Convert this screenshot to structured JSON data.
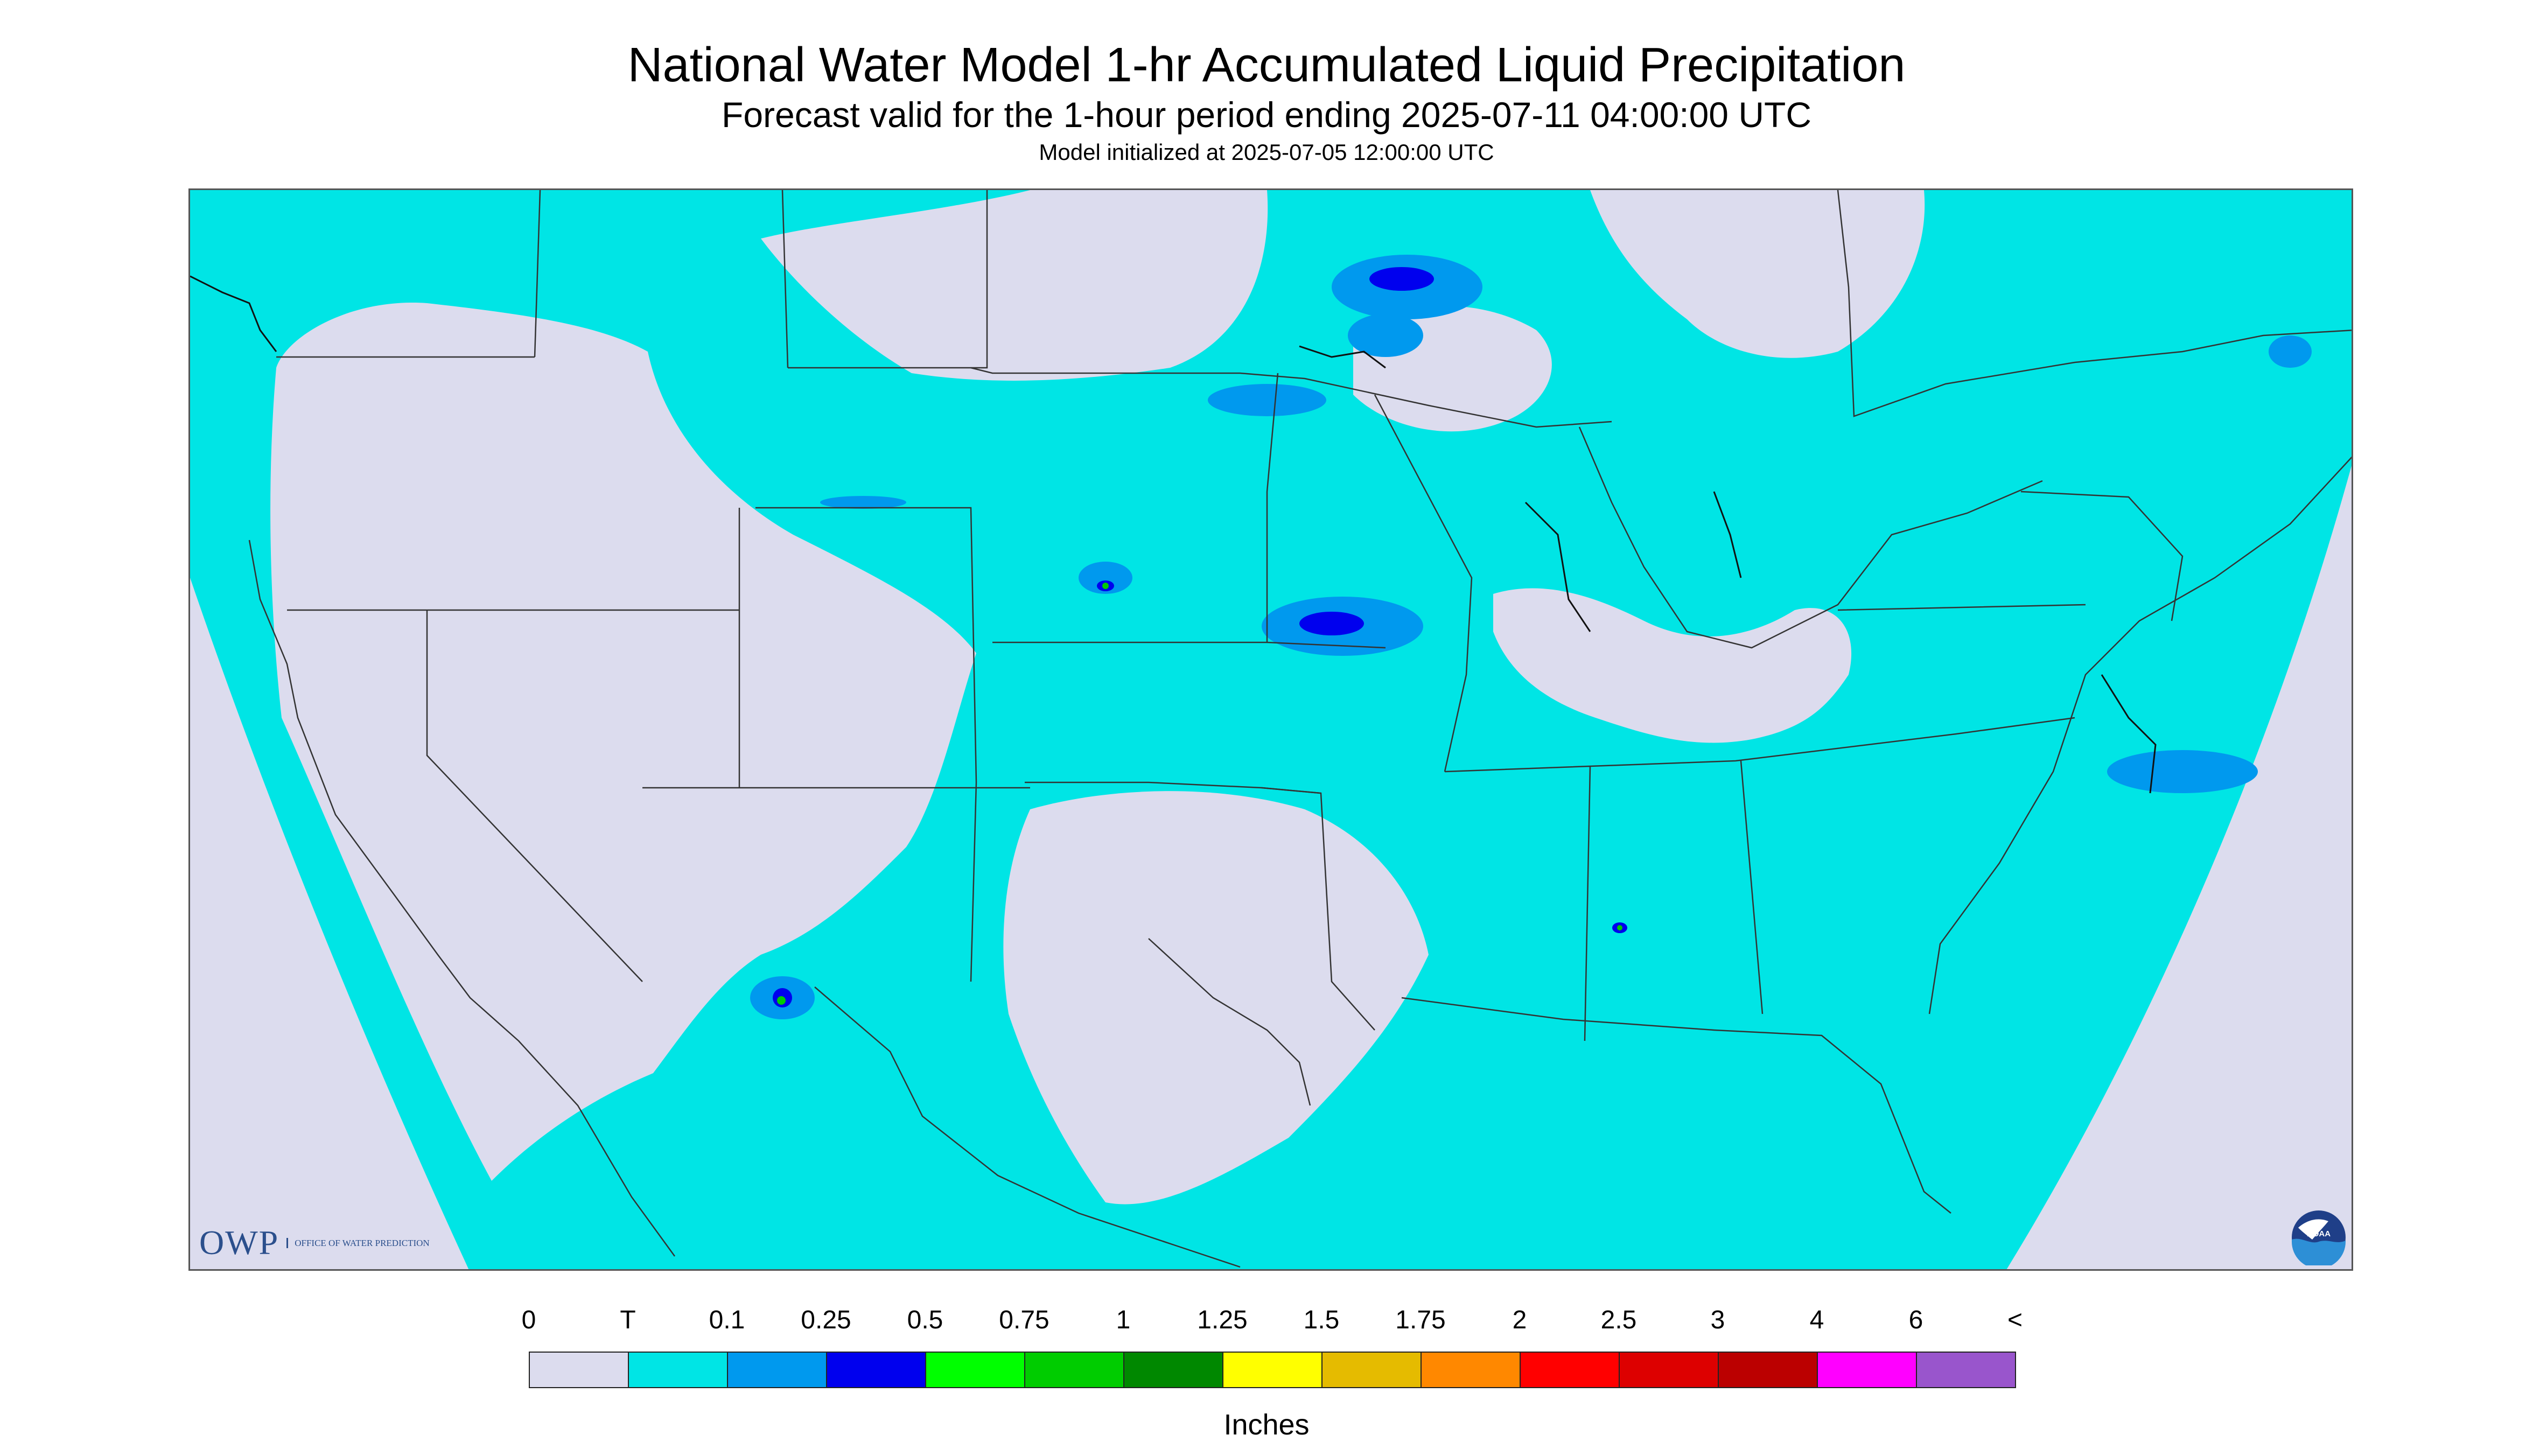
{
  "header": {
    "title": "National Water Model 1-hr Accumulated Liquid Precipitation",
    "subtitle": "Forecast valid for the 1-hour period ending 2025-07-11 04:00:00 UTC",
    "init": "Model initialized at 2025-07-05 12:00:00 UTC"
  },
  "legend": {
    "labels": [
      "0",
      "T",
      "0.1",
      "0.25",
      "0.5",
      "0.75",
      "1",
      "1.25",
      "1.5",
      "1.75",
      "2",
      "2.5",
      "3",
      "4",
      "6",
      "<"
    ],
    "colors": [
      "#dcdcee",
      "#00e5e5",
      "#0099ee",
      "#0000ee",
      "#00ff00",
      "#00cc00",
      "#008800",
      "#ffff00",
      "#e5bb00",
      "#ff8800",
      "#ff0000",
      "#dd0000",
      "#bb0000",
      "#ff00ff",
      "#9955cc"
    ],
    "units": "Inches"
  },
  "logos": {
    "owp_mark": "OWP",
    "owp_sub": "OFFICE OF WATER PREDICTION",
    "noaa": "NOAA"
  },
  "colors": {
    "no_data_background": "#dcdcee",
    "trace": "#00e5e5",
    "light": "#0099ee",
    "moderate": "#0000ee",
    "border_lines": "#333333"
  }
}
